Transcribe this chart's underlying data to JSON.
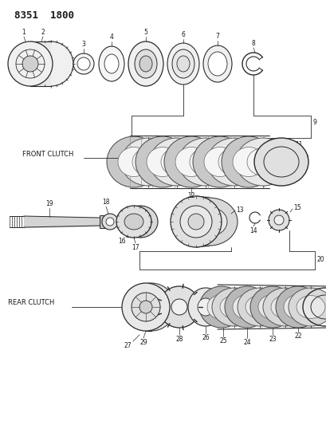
{
  "title": "8351  1800",
  "bg_color": "#ffffff",
  "line_color": "#2a2a2a",
  "label_color": "#1a1a1a",
  "front_clutch_label": "FRONT CLUTCH",
  "rear_clutch_label": "REAR CLUTCH",
  "title_fontsize": 9,
  "label_fontsize": 6,
  "number_fontsize": 5.5,
  "fig_w": 4.1,
  "fig_h": 5.33,
  "dpi": 100
}
